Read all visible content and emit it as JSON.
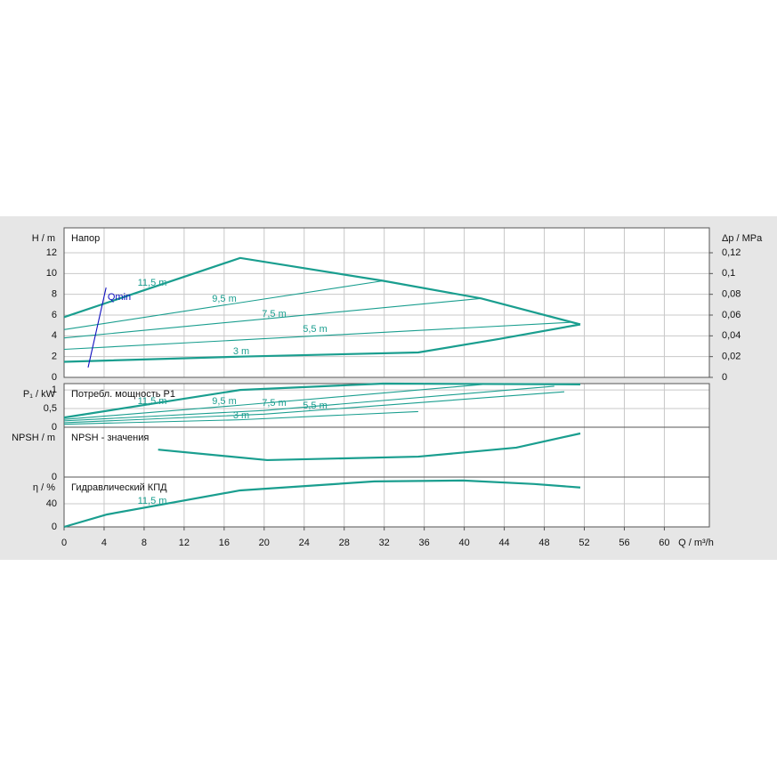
{
  "chart_data": [
    {
      "type": "line",
      "title": "Напор",
      "ylabel": "H / m",
      "y2label": "Δp / MPa",
      "xlim": [
        0,
        64.5
      ],
      "ylim": [
        0,
        14.4
      ],
      "yticks": [
        0,
        2,
        4,
        6,
        8,
        10,
        12
      ],
      "y2lim": [
        0,
        0.144
      ],
      "y2ticks": [
        0,
        {
          "value": 0.02,
          "label": "0,02"
        },
        {
          "value": 0.04,
          "label": "0,04"
        },
        {
          "value": 0.06,
          "label": "0,06"
        },
        {
          "value": 0.08,
          "label": "0,08"
        },
        {
          "value": 0.1,
          "label": "0,1"
        },
        {
          "value": 0.12,
          "label": "0,12"
        }
      ],
      "grid": true,
      "series": [
        {
          "name": "11,5 m",
          "color": "#1a9e8f",
          "x": [
            0,
            17.6,
            31.9,
            41.7,
            51.6
          ],
          "values": [
            5.8,
            11.5,
            9.3,
            7.6,
            5.1
          ]
        },
        {
          "name": "9,5 m",
          "color": "#1a9e8f",
          "x": [
            0,
            31.9
          ],
          "values": [
            4.6,
            9.3
          ]
        },
        {
          "name": "7,5 m",
          "color": "#1a9e8f",
          "x": [
            0,
            41.7
          ],
          "values": [
            3.8,
            7.6
          ]
        },
        {
          "name": "5,5 m",
          "color": "#1a9e8f",
          "x": [
            0,
            50.6
          ],
          "values": [
            2.7,
            5.3
          ]
        },
        {
          "name": "3 m",
          "color": "#1a9e8f",
          "x": [
            0,
            17.6,
            35.4,
            43.5,
            51.6
          ],
          "values": [
            1.5,
            2.0,
            2.4,
            3.7,
            5.1
          ]
        },
        {
          "name": "Qmin",
          "color": "#1010c0",
          "x": [
            2.4,
            4.2
          ],
          "values": [
            0.95,
            8.65
          ]
        }
      ]
    },
    {
      "type": "line",
      "title": "Потребл. мощность P1",
      "ylabel": "P₁ / kW",
      "xlim": [
        0,
        64.5
      ],
      "ylim": [
        0,
        1.17
      ],
      "yticks": [
        0,
        {
          "value": 0.5,
          "label": "0,5"
        },
        1
      ],
      "grid": true,
      "series": [
        {
          "name": "11,5 m",
          "color": "#1a9e8f",
          "x": [
            0,
            17.6,
            31.9,
            51.6
          ],
          "values": [
            0.26,
            1.0,
            1.17,
            1.15
          ]
        },
        {
          "name": "9,5 m",
          "color": "#1a9e8f",
          "x": [
            0,
            18,
            42
          ],
          "values": [
            0.21,
            0.6,
            1.15
          ]
        },
        {
          "name": "7,5 m",
          "color": "#1a9e8f",
          "x": [
            0,
            20,
            49
          ],
          "values": [
            0.17,
            0.45,
            1.1
          ]
        },
        {
          "name": "5,5 m",
          "color": "#1a9e8f",
          "x": [
            0,
            20,
            50
          ],
          "values": [
            0.12,
            0.35,
            0.95
          ]
        },
        {
          "name": "3 m",
          "color": "#1a9e8f",
          "x": [
            0,
            17.6,
            35.4
          ],
          "values": [
            0.08,
            0.2,
            0.42
          ]
        }
      ]
    },
    {
      "type": "line",
      "title": "NPSH - значения",
      "ylabel": "NPSH / m",
      "xlim": [
        0,
        64.5
      ],
      "ylim": [
        0,
        10
      ],
      "yticks": [
        0
      ],
      "grid": true,
      "series": [
        {
          "name": "11,5 m",
          "color": "#1a9e8f",
          "x": [
            9.4,
            20.3,
            35.4,
            45.2,
            51.6
          ],
          "values": [
            5.5,
            3.4,
            4.1,
            5.9,
            8.75
          ]
        }
      ]
    },
    {
      "type": "line",
      "title": "Гидравлический КПД",
      "ylabel": "η / %",
      "xlabel": "Q / m³/h",
      "xlim": [
        0,
        64.5
      ],
      "ylim": [
        0,
        86
      ],
      "yticks": [
        0,
        40
      ],
      "xticks": [
        0,
        4,
        8,
        12,
        16,
        20,
        24,
        28,
        32,
        36,
        40,
        44,
        48,
        52,
        56,
        60
      ],
      "grid": true,
      "series": [
        {
          "name": "11,5 m",
          "color": "#1a9e8f",
          "x": [
            0,
            4.3,
            17.6,
            31,
            39.9,
            47,
            51.6
          ],
          "values": [
            0,
            21.5,
            63,
            78.5,
            80,
            74,
            68
          ]
        }
      ]
    }
  ]
}
